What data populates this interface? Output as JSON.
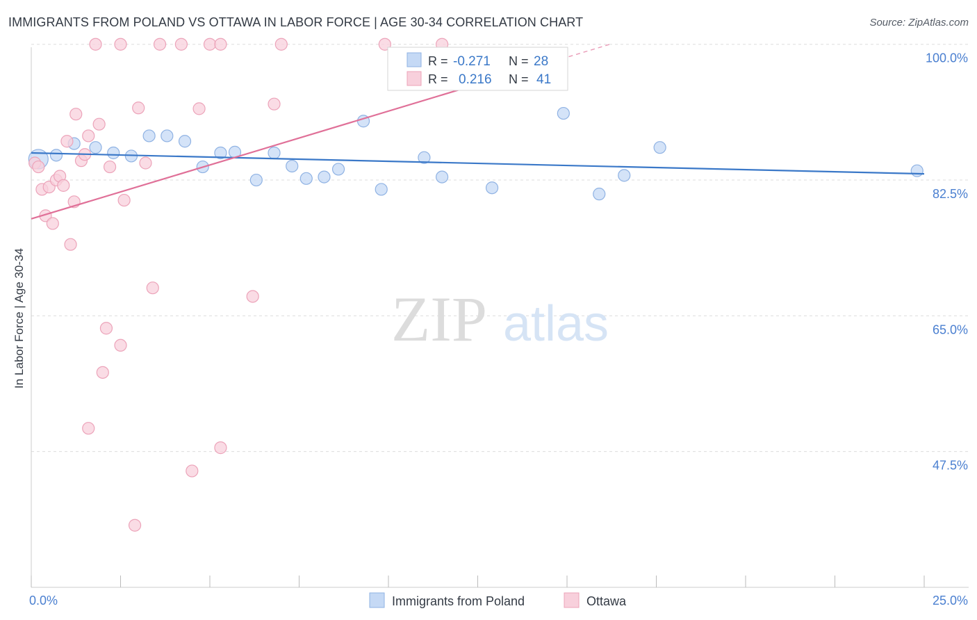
{
  "title": "IMMIGRANTS FROM POLAND VS OTTAWA IN LABOR FORCE | AGE 30-34 CORRELATION CHART",
  "source": "Source: ZipAtlas.com",
  "watermark": {
    "zip": "ZIP",
    "atlas": "atlas"
  },
  "colors": {
    "blue_fill": "#c5d9f5",
    "blue_stroke": "#8fb2e3",
    "blue_line": "#3a78c8",
    "pink_fill": "#f8d0dc",
    "pink_stroke": "#eca3b9",
    "pink_line": "#e07098",
    "tick_label": "#4a7fd0",
    "grid": "#dddddd"
  },
  "chart_data": {
    "type": "scatter",
    "xlabel": "",
    "ylabel": "In Labor Force | Age 30-34",
    "xlim": [
      0,
      25
    ],
    "ylim": [
      30,
      101.5
    ],
    "x_tick_labels": [
      {
        "value": 0,
        "label": "0.0%"
      },
      {
        "value": 25,
        "label": "25.0%"
      }
    ],
    "y_tick_labels": [
      {
        "value": 100,
        "label": "100.0%"
      },
      {
        "value": 82.5,
        "label": "82.5%"
      },
      {
        "value": 65,
        "label": "65.0%"
      },
      {
        "value": 47.5,
        "label": "47.5%"
      }
    ],
    "legend_stats": [
      {
        "r_label": "R =",
        "r_value": "-0.271",
        "n_label": "N =",
        "n_value": "28"
      },
      {
        "r_label": "R =",
        "r_value": "0.216",
        "n_label": "N =",
        "n_value": "41"
      }
    ],
    "series": [
      {
        "name": "Immigrants from Poland",
        "color": "blue",
        "trend": {
          "x0": 0,
          "y0": 86.0,
          "x1": 25,
          "y1": 83.3,
          "dashed_from": null
        },
        "points": [
          {
            "x": 0.2,
            "y": 85.2,
            "big": true
          },
          {
            "x": 0.7,
            "y": 85.7
          },
          {
            "x": 1.2,
            "y": 87.2
          },
          {
            "x": 1.8,
            "y": 86.7
          },
          {
            "x": 2.3,
            "y": 86.0
          },
          {
            "x": 2.8,
            "y": 85.6
          },
          {
            "x": 3.3,
            "y": 88.2
          },
          {
            "x": 3.8,
            "y": 88.2
          },
          {
            "x": 4.3,
            "y": 87.5
          },
          {
            "x": 4.8,
            "y": 84.2
          },
          {
            "x": 5.3,
            "y": 86.0
          },
          {
            "x": 5.7,
            "y": 86.1
          },
          {
            "x": 6.3,
            "y": 82.5
          },
          {
            "x": 6.8,
            "y": 86.0
          },
          {
            "x": 7.3,
            "y": 84.3
          },
          {
            "x": 7.7,
            "y": 82.7
          },
          {
            "x": 8.2,
            "y": 82.9
          },
          {
            "x": 8.6,
            "y": 83.9
          },
          {
            "x": 9.3,
            "y": 90.1
          },
          {
            "x": 9.8,
            "y": 81.3
          },
          {
            "x": 11.0,
            "y": 85.4
          },
          {
            "x": 11.5,
            "y": 82.9
          },
          {
            "x": 12.9,
            "y": 81.5
          },
          {
            "x": 14.9,
            "y": 91.1
          },
          {
            "x": 15.9,
            "y": 80.7
          },
          {
            "x": 16.6,
            "y": 83.1
          },
          {
            "x": 17.6,
            "y": 86.7
          },
          {
            "x": 24.8,
            "y": 83.7
          }
        ]
      },
      {
        "name": "Ottawa",
        "color": "pink",
        "trend": {
          "x0": 0,
          "y0": 77.5,
          "x1": 16.2,
          "y1": 100.0,
          "dashed_from": 13.0
        },
        "points": [
          {
            "x": 0.1,
            "y": 84.7
          },
          {
            "x": 0.2,
            "y": 84.2
          },
          {
            "x": 0.3,
            "y": 81.3
          },
          {
            "x": 0.4,
            "y": 77.9
          },
          {
            "x": 0.5,
            "y": 81.6
          },
          {
            "x": 0.6,
            "y": 76.9
          },
          {
            "x": 0.7,
            "y": 82.5
          },
          {
            "x": 0.8,
            "y": 83.0
          },
          {
            "x": 0.9,
            "y": 81.8
          },
          {
            "x": 1.0,
            "y": 87.5
          },
          {
            "x": 1.1,
            "y": 74.2
          },
          {
            "x": 1.2,
            "y": 79.7
          },
          {
            "x": 1.25,
            "y": 91.0
          },
          {
            "x": 1.4,
            "y": 85.0
          },
          {
            "x": 1.5,
            "y": 85.8
          },
          {
            "x": 1.6,
            "y": 88.2
          },
          {
            "x": 1.8,
            "y": 100.0
          },
          {
            "x": 1.9,
            "y": 89.7
          },
          {
            "x": 2.0,
            "y": 57.7
          },
          {
            "x": 2.1,
            "y": 63.4
          },
          {
            "x": 2.2,
            "y": 84.2
          },
          {
            "x": 2.5,
            "y": 100.0
          },
          {
            "x": 2.5,
            "y": 61.2
          },
          {
            "x": 2.6,
            "y": 79.9
          },
          {
            "x": 1.6,
            "y": 50.5
          },
          {
            "x": 2.9,
            "y": 38.0
          },
          {
            "x": 3.0,
            "y": 91.8
          },
          {
            "x": 3.2,
            "y": 84.7
          },
          {
            "x": 3.4,
            "y": 68.6
          },
          {
            "x": 3.6,
            "y": 100.0
          },
          {
            "x": 4.2,
            "y": 100.0
          },
          {
            "x": 4.5,
            "y": 45.0
          },
          {
            "x": 4.7,
            "y": 91.7
          },
          {
            "x": 5.0,
            "y": 100.0
          },
          {
            "x": 5.3,
            "y": 100.0
          },
          {
            "x": 5.3,
            "y": 48.0
          },
          {
            "x": 6.2,
            "y": 67.5
          },
          {
            "x": 6.8,
            "y": 92.3
          },
          {
            "x": 7.0,
            "y": 100.0
          },
          {
            "x": 9.9,
            "y": 100.0
          },
          {
            "x": 11.5,
            "y": 100.0
          }
        ]
      }
    ]
  }
}
